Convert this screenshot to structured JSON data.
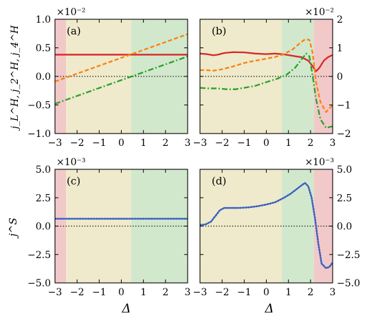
{
  "colors": {
    "red_band": "#f2c9c9",
    "yellow_band": "#eeeacb",
    "green_band": "#d2e8cd",
    "red_line": "#d62728",
    "orange_line": "#ff7f0e",
    "green_line": "#2ca02c",
    "blue_line": "#3a5fc0",
    "zero_line": "#000000"
  },
  "shared": {
    "xlabel": "Δ",
    "ylabel_top": "j_L^H, j_2^H, j_4^H",
    "ylabel_bottom": "j^S"
  },
  "chart_data": [
    {
      "id": "a",
      "type": "line",
      "panel_label": "(a)",
      "scale_label": "×10⁻²",
      "xlim": [
        -3,
        3
      ],
      "ylim": [
        -1.0,
        1.0
      ],
      "yticks": [
        -1.0,
        -0.5,
        0.0,
        0.5,
        1.0
      ],
      "ytick_labels": [
        "−1.0",
        "−0.5",
        "0.0",
        "0.5",
        "1.0"
      ],
      "xticks": [
        -3,
        -2,
        -1,
        0,
        1,
        2,
        3
      ],
      "xtick_labels": [
        "−3",
        "−2",
        "−1",
        "0",
        "1",
        "2",
        "3"
      ],
      "bands": [
        {
          "from": -3,
          "to": -2.5,
          "color": "red_band"
        },
        {
          "from": -2.5,
          "to": 0.45,
          "color": "yellow_band"
        },
        {
          "from": 0.45,
          "to": 3,
          "color": "green_band"
        }
      ],
      "series": [
        {
          "id": "red",
          "style": "solid",
          "color": "red_line",
          "x": [
            -3,
            3
          ],
          "y": [
            0.38,
            0.38
          ]
        },
        {
          "id": "orange",
          "style": "dashed",
          "color": "orange_line",
          "x": [
            -3,
            3
          ],
          "y": [
            -0.09,
            0.74
          ]
        },
        {
          "id": "green",
          "style": "dashdot",
          "color": "green_line",
          "x": [
            -3,
            3
          ],
          "y": [
            -0.48,
            0.35
          ]
        }
      ]
    },
    {
      "id": "b",
      "type": "line",
      "panel_label": "(b)",
      "scale_label": "×10⁻²",
      "xlim": [
        -3,
        3
      ],
      "ylim": [
        -2,
        2
      ],
      "yticks": [
        -2,
        -1,
        0,
        1,
        2
      ],
      "ytick_labels": [
        "−2",
        "−1",
        "0",
        "1",
        "2"
      ],
      "xticks": [
        -3,
        -2,
        -1,
        0,
        1,
        2,
        3
      ],
      "xtick_labels": [
        "−3",
        "−2",
        "−1",
        "0",
        "1",
        "2",
        "3"
      ],
      "bands": [
        {
          "from": -3,
          "to": 0.7,
          "color": "yellow_band"
        },
        {
          "from": 0.7,
          "to": 2.15,
          "color": "green_band"
        },
        {
          "from": 2.15,
          "to": 3,
          "color": "red_band"
        }
      ],
      "series": [
        {
          "id": "red",
          "style": "solid",
          "color": "red_line",
          "x": [
            -3,
            -2.7,
            -2.4,
            -2.2,
            -1.9,
            -1.5,
            -1.0,
            -0.5,
            0.0,
            0.4,
            0.8,
            1.2,
            1.6,
            1.9,
            2.1,
            2.25,
            2.4,
            2.6,
            2.8,
            3.0
          ],
          "y": [
            0.8,
            0.78,
            0.74,
            0.76,
            0.82,
            0.85,
            0.84,
            0.8,
            0.78,
            0.8,
            0.77,
            0.72,
            0.67,
            0.55,
            0.35,
            0.18,
            0.3,
            0.55,
            0.68,
            0.75
          ]
        },
        {
          "id": "orange",
          "style": "dashed",
          "color": "orange_line",
          "x": [
            -3,
            -2.7,
            -2.4,
            -2.0,
            -1.5,
            -1.0,
            -0.5,
            0.0,
            0.4,
            0.8,
            1.2,
            1.5,
            1.75,
            1.95,
            2.1,
            2.25,
            2.45,
            2.7,
            3.0
          ],
          "y": [
            0.22,
            0.22,
            0.2,
            0.25,
            0.35,
            0.47,
            0.55,
            0.62,
            0.68,
            0.78,
            0.95,
            1.15,
            1.3,
            1.28,
            0.8,
            -0.2,
            -0.9,
            -1.25,
            -1.0
          ]
        },
        {
          "id": "green",
          "style": "dashdot",
          "color": "green_line",
          "x": [
            -3,
            -2.6,
            -2.2,
            -1.8,
            -1.4,
            -1.0,
            -0.5,
            0.0,
            0.5,
            0.9,
            1.3,
            1.6,
            1.8,
            1.95,
            2.1,
            2.25,
            2.45,
            2.7,
            3.0
          ],
          "y": [
            -0.4,
            -0.42,
            -0.42,
            -0.45,
            -0.45,
            -0.4,
            -0.33,
            -0.2,
            -0.08,
            0.05,
            0.3,
            0.6,
            0.8,
            0.7,
            0.0,
            -0.8,
            -1.5,
            -1.8,
            -1.75
          ]
        }
      ]
    },
    {
      "id": "c",
      "type": "line",
      "panel_label": "(c)",
      "scale_label": "×10⁻³",
      "xlim": [
        -3,
        3
      ],
      "ylim": [
        -5.0,
        5.0
      ],
      "yticks": [
        -5.0,
        -2.5,
        0.0,
        2.5,
        5.0
      ],
      "ytick_labels": [
        "−5.0",
        "−2.5",
        "0.0",
        "2.5",
        "5.0"
      ],
      "xticks": [
        -3,
        -2,
        -1,
        0,
        1,
        2,
        3
      ],
      "xtick_labels": [
        "−3",
        "−2",
        "−1",
        "0",
        "1",
        "2",
        "3"
      ],
      "bands": [
        {
          "from": -3,
          "to": -2.5,
          "color": "red_band"
        },
        {
          "from": -2.5,
          "to": 0.45,
          "color": "yellow_band"
        },
        {
          "from": 0.45,
          "to": 3,
          "color": "green_band"
        }
      ],
      "series": [
        {
          "id": "blue",
          "style": "dotted",
          "color": "blue_line",
          "x": [
            -3,
            3
          ],
          "y": [
            0.65,
            0.65
          ]
        }
      ]
    },
    {
      "id": "d",
      "type": "line",
      "panel_label": "(d)",
      "scale_label": "×10⁻³",
      "xlim": [
        -3,
        3
      ],
      "ylim": [
        -5.0,
        5.0
      ],
      "yticks": [
        -5.0,
        -2.5,
        0.0,
        2.5,
        5.0
      ],
      "ytick_labels": [
        "−5.0",
        "−2.5",
        "0.0",
        "2.5",
        "5.0"
      ],
      "xticks": [
        -3,
        -2,
        -1,
        0,
        1,
        2,
        3
      ],
      "xtick_labels": [
        "−3",
        "−2",
        "−1",
        "0",
        "1",
        "2",
        "3"
      ],
      "bands": [
        {
          "from": -3,
          "to": 0.7,
          "color": "yellow_band"
        },
        {
          "from": 0.7,
          "to": 2.15,
          "color": "green_band"
        },
        {
          "from": 2.15,
          "to": 3,
          "color": "red_band"
        }
      ],
      "series": [
        {
          "id": "blue",
          "style": "dotted",
          "color": "blue_line",
          "x": [
            -3,
            -2.75,
            -2.5,
            -2.3,
            -2.1,
            -1.9,
            -1.6,
            -1.2,
            -0.8,
            -0.4,
            0.0,
            0.4,
            0.8,
            1.1,
            1.4,
            1.6,
            1.75,
            1.9,
            2.05,
            2.2,
            2.35,
            2.5,
            2.7,
            2.85,
            3.0
          ],
          "y": [
            0.1,
            0.15,
            0.4,
            0.9,
            1.4,
            1.6,
            1.6,
            1.6,
            1.65,
            1.75,
            1.9,
            2.1,
            2.5,
            2.85,
            3.3,
            3.6,
            3.8,
            3.5,
            2.5,
            0.7,
            -1.5,
            -3.3,
            -3.7,
            -3.6,
            -3.2
          ]
        }
      ]
    }
  ]
}
